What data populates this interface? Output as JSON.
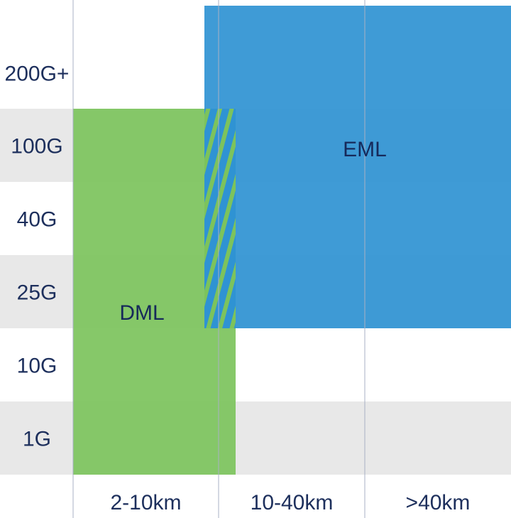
{
  "chart_data": {
    "type": "heatmap",
    "title": "",
    "xlabel": "",
    "ylabel": "",
    "x_categories": [
      "2-10km",
      "10-40km",
      ">40km"
    ],
    "y_categories": [
      "200G+",
      "100G",
      "40G",
      "25G",
      "10G",
      "1G"
    ],
    "regions": [
      {
        "name": "DML",
        "label": "DML",
        "x_range": [
          "2-10km",
          "10-40km"
        ],
        "y_range": [
          "1G",
          "100G"
        ],
        "note": "extends only partially into 10-40km"
      },
      {
        "name": "EML",
        "label": "EML",
        "x_range": [
          "2-10km",
          ">40km"
        ],
        "y_range": [
          "25G",
          "200G+"
        ],
        "note": "starts near the end of 2-10km"
      }
    ],
    "overlap": {
      "between": [
        "DML",
        "EML"
      ],
      "style": "hatched"
    },
    "row_banding": true,
    "grid": "vertical"
  },
  "colors": {
    "dml": "#7cc35c",
    "eml": "#2f93d3",
    "band": "#e8e8e8",
    "text": "#1d2f5c",
    "grid": "#a9b0c4"
  }
}
